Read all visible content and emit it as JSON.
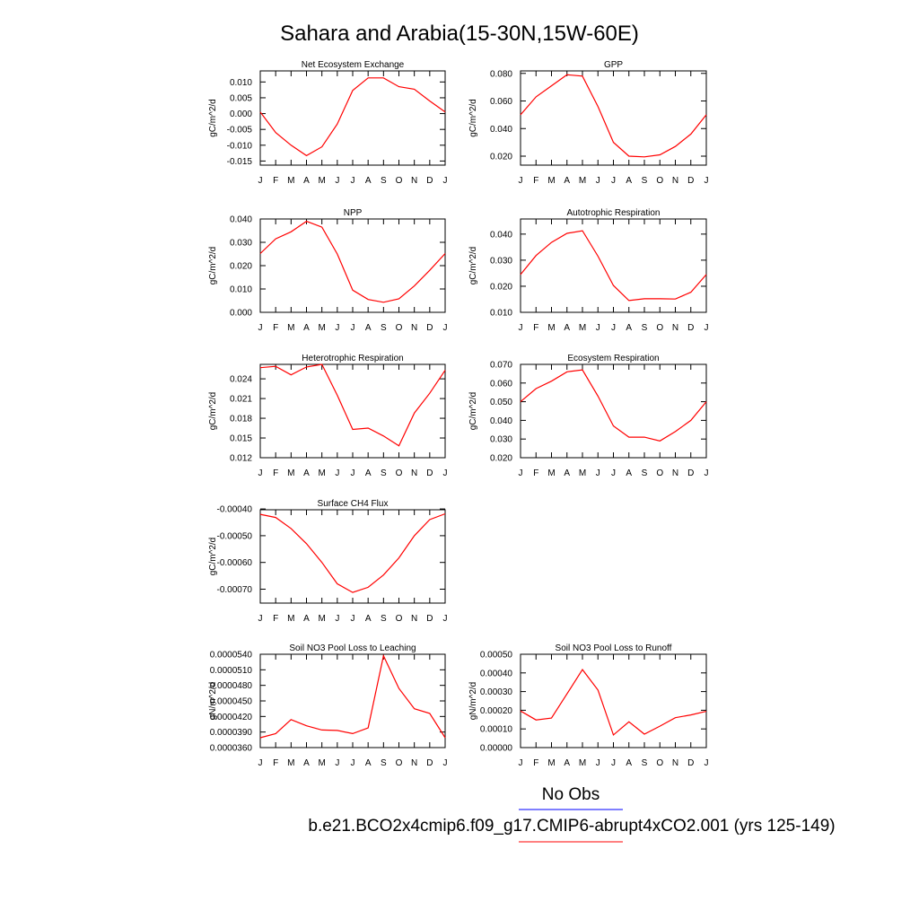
{
  "figure": {
    "title": "Sahara and Arabia(15-30N,15W-60E)",
    "legend": {
      "entries": [
        {
          "label": "No Obs",
          "color": "#0000ff"
        },
        {
          "label": "b.e21.BCO2x4cmip6.f09_g17.CMIP6-abrupt4xCO2.001 (yrs 125-149)",
          "color": "#ff0000"
        }
      ]
    },
    "series_color": "#ff0000"
  },
  "chart_data": [
    {
      "type": "line",
      "title": "Net Ecosystem Exchange",
      "ylabel": "gC/m^2/d",
      "x": [
        "J",
        "F",
        "M",
        "A",
        "M",
        "J",
        "J",
        "A",
        "S",
        "O",
        "N",
        "D",
        "J"
      ],
      "values": [
        0.0005,
        -0.006,
        -0.01,
        -0.0133,
        -0.0105,
        -0.0033,
        0.0073,
        0.0113,
        0.0113,
        0.0085,
        0.0077,
        0.004,
        0.0005
      ],
      "ylim": [
        -0.0163,
        0.0135
      ],
      "yticks": [
        -0.015,
        -0.01,
        -0.005,
        0.0,
        0.005,
        0.01
      ],
      "yticklabels": [
        "-0.015",
        "-0.010",
        "-0.005",
        "0.000",
        "0.005",
        "0.010"
      ]
    },
    {
      "type": "line",
      "title": "GPP",
      "ylabel": "gC/m^2/d",
      "x": [
        "J",
        "F",
        "M",
        "A",
        "M",
        "J",
        "J",
        "A",
        "S",
        "O",
        "N",
        "D",
        "J"
      ],
      "values": [
        0.05,
        0.063,
        0.071,
        0.079,
        0.078,
        0.056,
        0.03,
        0.02,
        0.0195,
        0.021,
        0.027,
        0.036,
        0.05
      ],
      "ylim": [
        0.0135,
        0.0818
      ],
      "yticks": [
        0.02,
        0.04,
        0.06,
        0.08
      ],
      "yticklabels": [
        "0.020",
        "0.040",
        "0.060",
        "0.080"
      ]
    },
    {
      "type": "line",
      "title": "NPP",
      "ylabel": "gC/m^2/d",
      "x": [
        "J",
        "F",
        "M",
        "A",
        "M",
        "J",
        "J",
        "A",
        "S",
        "O",
        "N",
        "D",
        "J"
      ],
      "values": [
        0.0252,
        0.0315,
        0.0345,
        0.039,
        0.0365,
        0.025,
        0.0095,
        0.0055,
        0.0043,
        0.0058,
        0.0113,
        0.018,
        0.0252
      ],
      "ylim": [
        0.0,
        0.04
      ],
      "yticks": [
        0.0,
        0.01,
        0.02,
        0.03,
        0.04
      ],
      "yticklabels": [
        "0.000",
        "0.010",
        "0.020",
        "0.030",
        "0.040"
      ]
    },
    {
      "type": "line",
      "title": "Autotrophic Respiration",
      "ylabel": "gC/m^2/d",
      "x": [
        "J",
        "F",
        "M",
        "A",
        "M",
        "J",
        "J",
        "A",
        "S",
        "O",
        "N",
        "D",
        "J"
      ],
      "values": [
        0.0245,
        0.0318,
        0.0368,
        0.0403,
        0.0413,
        0.0315,
        0.0203,
        0.0145,
        0.0152,
        0.0152,
        0.0151,
        0.0177,
        0.0245
      ],
      "ylim": [
        0.01,
        0.0458
      ],
      "yticks": [
        0.01,
        0.02,
        0.03,
        0.04
      ],
      "yticklabels": [
        "0.010",
        "0.020",
        "0.030",
        "0.040"
      ]
    },
    {
      "type": "line",
      "title": "Heterotrophic Respiration",
      "ylabel": "gC/m^2/d",
      "x": [
        "J",
        "F",
        "M",
        "A",
        "M",
        "J",
        "J",
        "A",
        "S",
        "O",
        "N",
        "D",
        "J"
      ],
      "values": [
        0.0257,
        0.0259,
        0.0246,
        0.0258,
        0.0262,
        0.0215,
        0.0163,
        0.0165,
        0.0153,
        0.0138,
        0.0188,
        0.0218,
        0.0253
      ],
      "ylim": [
        0.012,
        0.0262
      ],
      "yticks": [
        0.012,
        0.015,
        0.018,
        0.021,
        0.024
      ],
      "yticklabels": [
        "0.012",
        "0.015",
        "0.018",
        "0.021",
        "0.024"
      ]
    },
    {
      "type": "line",
      "title": "Ecosystem Respiration",
      "ylabel": "gC/m^2/d",
      "x": [
        "J",
        "F",
        "M",
        "A",
        "M",
        "J",
        "J",
        "A",
        "S",
        "O",
        "N",
        "D",
        "J"
      ],
      "values": [
        0.05,
        0.057,
        0.061,
        0.066,
        0.067,
        0.053,
        0.037,
        0.031,
        0.031,
        0.029,
        0.034,
        0.04,
        0.05
      ],
      "ylim": [
        0.02,
        0.07
      ],
      "yticks": [
        0.02,
        0.03,
        0.04,
        0.05,
        0.06,
        0.07
      ],
      "yticklabels": [
        "0.020",
        "0.030",
        "0.040",
        "0.050",
        "0.060",
        "0.070"
      ]
    },
    {
      "type": "line",
      "title": "Surface CH4 Flux",
      "ylabel": "gC/m^2/d",
      "x": [
        "J",
        "F",
        "M",
        "A",
        "M",
        "J",
        "J",
        "A",
        "S",
        "O",
        "N",
        "D",
        "J"
      ],
      "values": [
        -0.00042,
        -0.000432,
        -0.000473,
        -0.00053,
        -0.0006,
        -0.00068,
        -0.000712,
        -0.000693,
        -0.000647,
        -0.000583,
        -0.0005,
        -0.00044,
        -0.000418
      ],
      "ylim": [
        -0.000752,
        -0.000403
      ],
      "yticks": [
        -0.0007,
        -0.0006,
        -0.0005,
        -0.0004
      ],
      "yticklabels": [
        "-0.00070",
        "-0.00060",
        "-0.00050",
        "-0.00040"
      ]
    },
    {
      "type": "line",
      "title": "Soil NO3 Pool Loss to Leaching",
      "ylabel": "gN/m^2/d",
      "x": [
        "J",
        "F",
        "M",
        "A",
        "M",
        "J",
        "J",
        "A",
        "S",
        "O",
        "N",
        "D",
        "J"
      ],
      "values": [
        3.79e-05,
        3.87e-05,
        4.14e-05,
        4.02e-05,
        3.94e-05,
        3.93e-05,
        3.87e-05,
        3.98e-05,
        5.37e-05,
        4.74e-05,
        4.35e-05,
        4.26e-05,
        3.79e-05
      ],
      "ylim": [
        3.6e-05,
        5.4e-05
      ],
      "yticks": [
        3.6e-05,
        3.9e-05,
        4.2e-05,
        4.5e-05,
        4.8e-05,
        5.1e-05,
        5.4e-05
      ],
      "yticklabels": [
        "0.0000360",
        "0.0000390",
        "0.0000420",
        "0.0000450",
        "0.0000480",
        "0.0000510",
        "0.0000540"
      ]
    },
    {
      "type": "line",
      "title": "Soil NO3 Pool Loss to Runoff",
      "ylabel": "gN/m^2/d",
      "x": [
        "J",
        "F",
        "M",
        "A",
        "M",
        "J",
        "J",
        "A",
        "S",
        "O",
        "N",
        "D",
        "J"
      ],
      "values": [
        0.000196,
        0.000148,
        0.000158,
        0.000288,
        0.000418,
        0.000308,
        6.8e-05,
        0.000138,
        7.2e-05,
        0.000115,
        0.00016,
        0.000175,
        0.000194
      ],
      "ylim": [
        0.0,
        0.0005
      ],
      "yticks": [
        0.0,
        0.0001,
        0.0002,
        0.0003,
        0.0004,
        0.0005
      ],
      "yticklabels": [
        "0.00000",
        "0.00010",
        "0.00020",
        "0.00030",
        "0.00040",
        "0.00050"
      ]
    }
  ]
}
